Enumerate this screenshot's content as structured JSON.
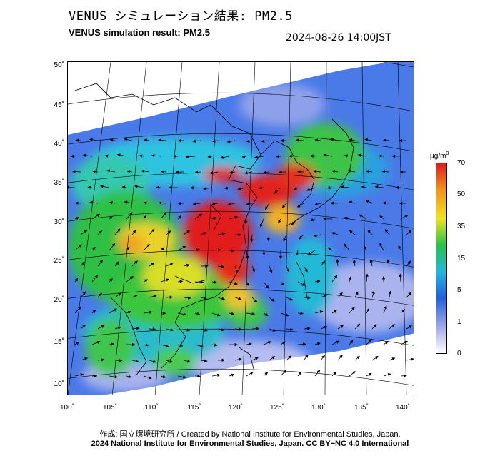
{
  "header": {
    "title_jp": "VENUS シミュレーション結果: PM2.5",
    "title_en": "VENUS simulation result: PM2.5",
    "timestamp": "2024-08-26 14:00JST"
  },
  "map": {
    "lat_ticks": [
      "50˚",
      "45˚",
      "40˚",
      "35˚",
      "30˚",
      "25˚",
      "20˚",
      "15˚",
      "10˚"
    ],
    "lon_ticks": [
      "100˚",
      "105˚",
      "110˚",
      "115˚",
      "120˚",
      "125˚",
      "130˚",
      "135˚",
      "140˚"
    ],
    "background_color": "#ffffff",
    "coastline_color": "#000000",
    "wind_arrow_color": "#000000"
  },
  "colorbar": {
    "unit_base": "μg/m",
    "unit_sup": "3",
    "ticks": [
      "70",
      "50",
      "35",
      "15",
      "5",
      "1",
      "0"
    ],
    "colors": [
      "#ffffff",
      "#9fa8e8",
      "#1f5fe0",
      "#1eb8e0",
      "#26c44a",
      "#f2e318",
      "#f09418",
      "#e21b1b"
    ]
  },
  "footer": {
    "credit_line": "作成: 国立環境研究所 / Created by National Institute for Environmental Studies, Japan.",
    "license_line": "2024 National Institute for Environmental Studies, Japan. CC BY−NC 4.0 International"
  }
}
